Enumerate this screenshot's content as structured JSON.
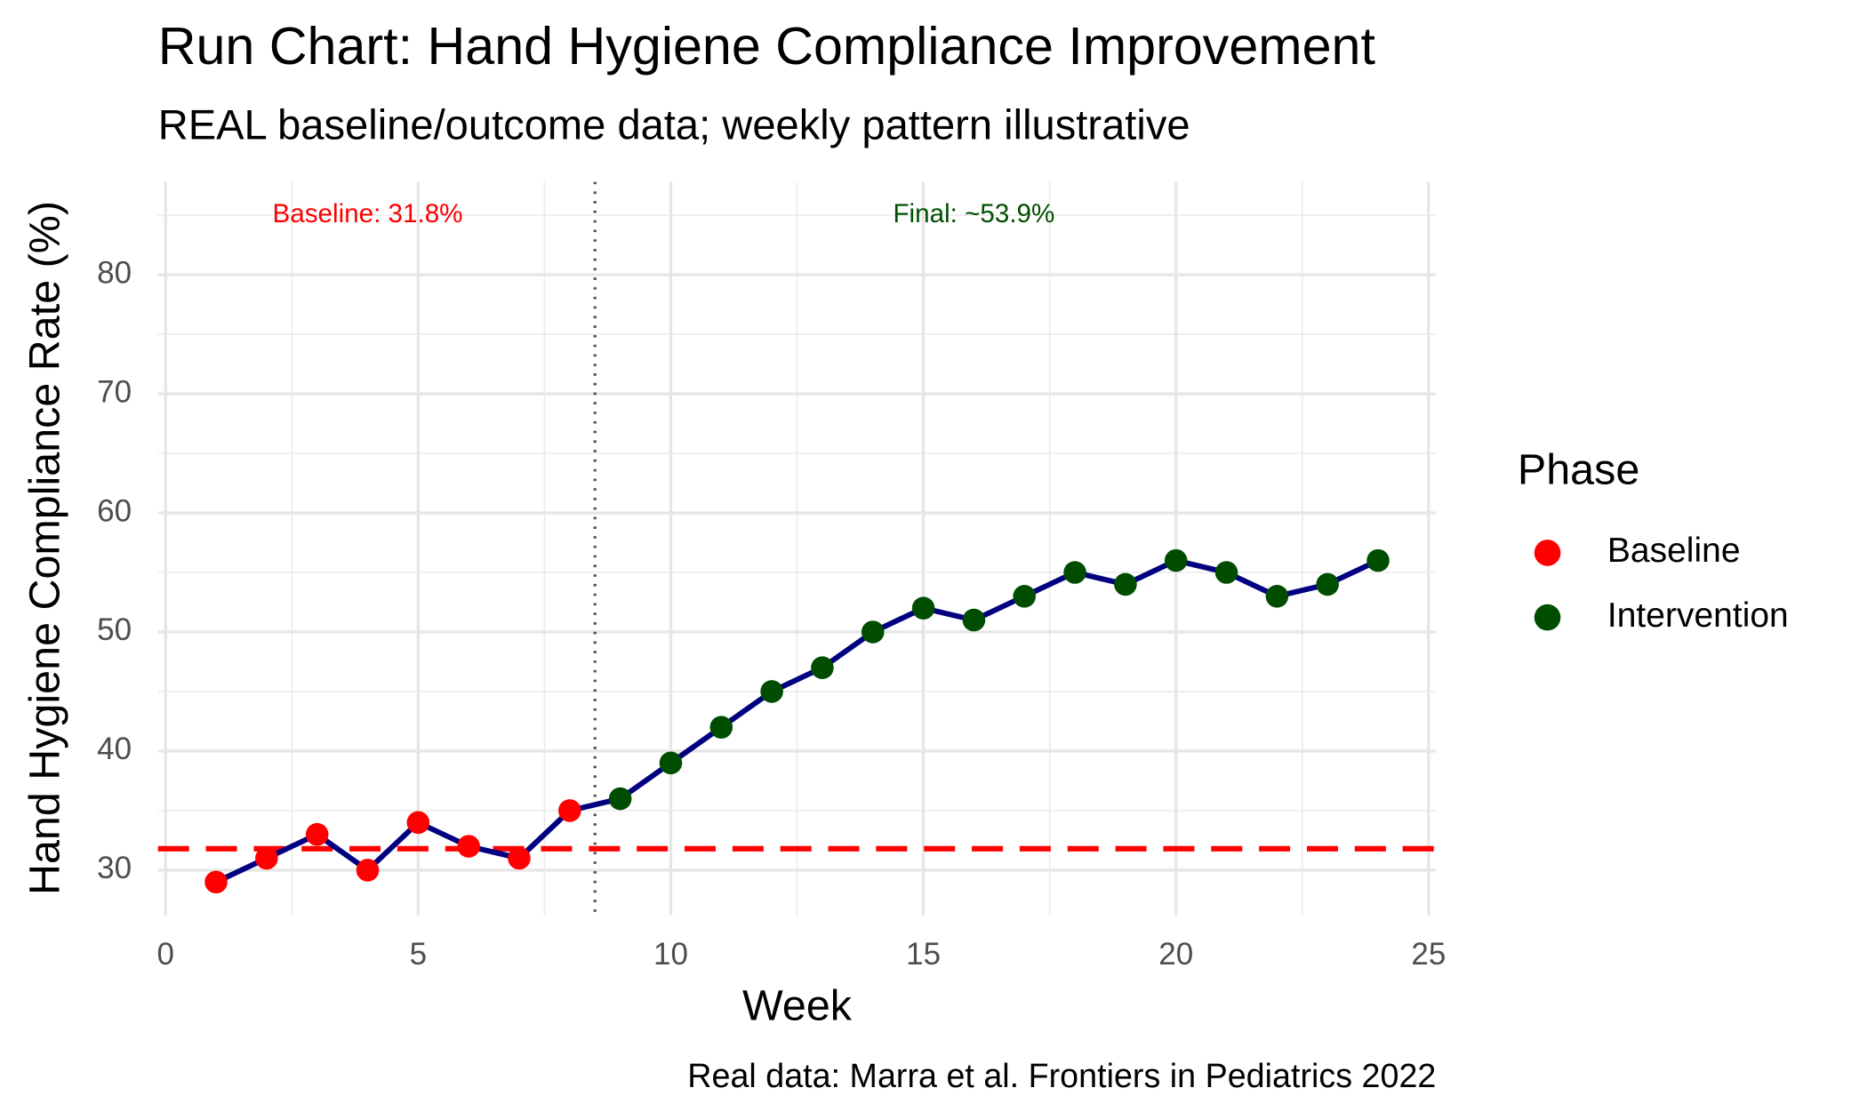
{
  "chart_data": {
    "type": "line",
    "title": "Run Chart: Hand Hygiene Compliance Improvement",
    "subtitle": "REAL baseline/outcome data; weekly pattern illustrative",
    "caption": "Real data: Marra et al. Frontiers in Pediatrics 2022",
    "x_label": "Week",
    "y_label": "Hand Hygiene Compliance Rate (%)",
    "legend_title": "Phase",
    "legend_position": "right",
    "line_color": "#000080",
    "series": [
      {
        "name": "Baseline",
        "color": "#ff0000",
        "x": [
          1,
          2,
          3,
          4,
          5,
          6,
          7,
          8
        ],
        "values": [
          29,
          31,
          33,
          30,
          34,
          32,
          31,
          35
        ]
      },
      {
        "name": "Intervention",
        "color": "#004d00",
        "x": [
          9,
          10,
          11,
          12,
          13,
          14,
          15,
          16,
          17,
          18,
          19,
          20,
          21,
          22,
          23,
          24
        ],
        "values": [
          36,
          39,
          42,
          45,
          47,
          50,
          52,
          51,
          53,
          55,
          54,
          56,
          55,
          53,
          54,
          56
        ]
      }
    ],
    "hlines": [
      {
        "value": 31.8,
        "color": "#ff0000"
      }
    ],
    "vlines": [
      {
        "value": 8.5,
        "color": "#555555"
      }
    ],
    "annotations": [
      {
        "text": "Baseline: 31.8%",
        "x": 4,
        "y": 85,
        "color": "#ff0000"
      },
      {
        "text": "Final: ~53.9%",
        "x": 16,
        "y": 85,
        "color": "#005000"
      }
    ],
    "xlim": [
      -0.15,
      25.15
    ],
    "ylim": [
      26.2,
      87.8
    ],
    "xticks": [
      0,
      5,
      10,
      15,
      20,
      25
    ],
    "yticks": [
      30,
      40,
      50,
      60,
      70,
      80
    ],
    "x_minor_ticks": [
      2.5,
      7.5,
      12.5,
      17.5,
      22.5
    ],
    "y_minor_ticks": [
      35,
      45,
      55,
      65,
      75,
      85
    ],
    "grid": true
  }
}
